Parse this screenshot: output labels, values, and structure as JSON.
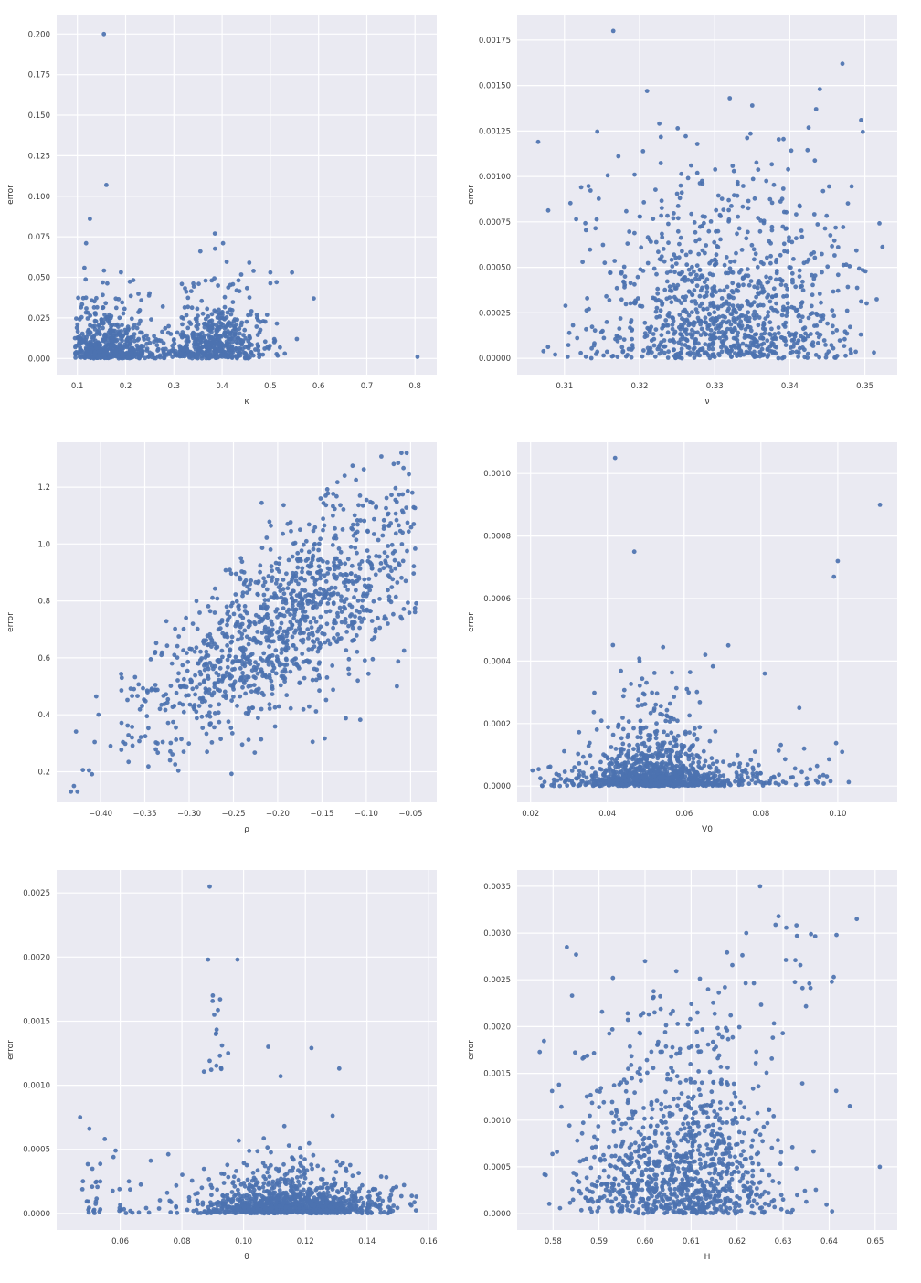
{
  "page": {
    "background": "#ffffff"
  },
  "style": {
    "plot_bg": "#eaeaf2",
    "grid_color": "#ffffff",
    "point_color": "#4c72b0",
    "tick_color": "#3d3d3d",
    "label_color": "#333333"
  },
  "chart_data": [
    {
      "type": "scatter",
      "title": "",
      "xlabel": "κ",
      "ylabel": "error",
      "grid": true,
      "legend": null,
      "xlim": [
        0.057,
        0.845
      ],
      "ylim": [
        -0.01,
        0.212
      ],
      "xtick_values": [
        0.1,
        0.2,
        0.3,
        0.4,
        0.5,
        0.6,
        0.7,
        0.8
      ],
      "xtick_labels": [
        "0.1",
        "0.2",
        "0.3",
        "0.4",
        "0.5",
        "0.6",
        "0.7",
        "0.8"
      ],
      "ytick_values": [
        0.0,
        0.025,
        0.05,
        0.075,
        0.1,
        0.125,
        0.15,
        0.175,
        0.2
      ],
      "ytick_labels": [
        "0.000",
        "0.025",
        "0.050",
        "0.075",
        "0.100",
        "0.125",
        "0.150",
        "0.175",
        "0.200"
      ],
      "n_points_approx": 1060,
      "seed": 101,
      "outlier_points": [
        [
          0.155,
          0.2
        ],
        [
          0.16,
          0.107
        ],
        [
          0.126,
          0.086
        ],
        [
          0.118,
          0.071
        ],
        [
          0.385,
          0.077
        ],
        [
          0.402,
          0.071
        ],
        [
          0.355,
          0.066
        ],
        [
          0.5,
          0.053
        ],
        [
          0.513,
          0.047
        ],
        [
          0.545,
          0.053
        ],
        [
          0.59,
          0.037
        ],
        [
          0.555,
          0.012
        ],
        [
          0.53,
          0.003
        ],
        [
          0.805,
          0.001
        ]
      ],
      "point_clusters": [
        {
          "n": 510,
          "x": {
            "dist": "gauss",
            "mean": 0.165,
            "sd": 0.05,
            "clip": [
              0.095,
              0.31
            ]
          },
          "y": {
            "dist": "exp",
            "scale": 0.011,
            "max": 0.062
          }
        },
        {
          "n": 510,
          "x": {
            "dist": "gauss",
            "mean": 0.385,
            "sd": 0.052,
            "clip": [
              0.27,
              0.52
            ]
          },
          "y": {
            "dist": "exp",
            "scale": 0.013,
            "max": 0.072
          }
        },
        {
          "n": 25,
          "x": {
            "dist": "uniform",
            "min": 0.25,
            "max": 0.33
          },
          "y": {
            "dist": "exp",
            "scale": 0.008,
            "max": 0.03
          }
        }
      ]
    },
    {
      "type": "scatter",
      "title": "",
      "xlabel": "ν",
      "ylabel": "error",
      "grid": true,
      "legend": null,
      "xlim": [
        0.3037,
        0.3543
      ],
      "ylim": [
        -9e-05,
        0.00189
      ],
      "xtick_values": [
        0.31,
        0.32,
        0.33,
        0.34,
        0.35
      ],
      "xtick_labels": [
        "0.31",
        "0.32",
        "0.33",
        "0.34",
        "0.35"
      ],
      "ytick_values": [
        0.0,
        0.00025,
        0.0005,
        0.00075,
        0.001,
        0.00125,
        0.0015,
        0.00175
      ],
      "ytick_labels": [
        "0.00000",
        "0.00025",
        "0.00050",
        "0.00075",
        "0.00100",
        "0.00125",
        "0.00150",
        "0.00175"
      ],
      "n_points_approx": 1060,
      "seed": 102,
      "outlier_points": [
        [
          0.3165,
          0.0018
        ],
        [
          0.347,
          0.00162
        ],
        [
          0.3065,
          0.00119
        ],
        [
          0.321,
          0.00147
        ],
        [
          0.332,
          0.00143
        ],
        [
          0.344,
          0.00148
        ],
        [
          0.3435,
          0.00137
        ],
        [
          0.335,
          0.00139
        ],
        [
          0.3495,
          0.00131
        ]
      ],
      "point_clusters": [
        {
          "n": 930,
          "x": {
            "dist": "gauss",
            "mean": 0.331,
            "sd": 0.0088,
            "clip": [
              0.3045,
              0.3525
            ]
          },
          "y": {
            "dist": "exp",
            "scale": 0.0003,
            "max": 0.00132
          }
        },
        {
          "n": 120,
          "x": {
            "dist": "gauss",
            "mean": 0.3315,
            "sd": 0.01,
            "clip": [
              0.306,
              0.352
            ]
          },
          "y": {
            "dist": "uniform",
            "min": 0.00015,
            "max": 0.00105
          }
        }
      ]
    },
    {
      "type": "scatter",
      "title": "",
      "xlabel": "ρ",
      "ylabel": "error",
      "grid": true,
      "legend": null,
      "xlim": [
        -0.4495,
        -0.0205
      ],
      "ylim": [
        0.0925,
        1.3575
      ],
      "xtick_values": [
        -0.4,
        -0.35,
        -0.3,
        -0.25,
        -0.2,
        -0.15,
        -0.1,
        -0.05
      ],
      "xtick_labels": [
        "−0.40",
        "−0.35",
        "−0.30",
        "−0.25",
        "−0.20",
        "−0.15",
        "−0.10",
        "−0.05"
      ],
      "ytick_values": [
        0.2,
        0.4,
        0.6,
        0.8,
        1.0,
        1.2
      ],
      "ytick_labels": [
        "0.2",
        "0.4",
        "0.6",
        "0.8",
        "1.0",
        "1.2"
      ],
      "n_points_approx": 1160,
      "seed": 103,
      "outlier_points": [
        [
          -0.43,
          0.15
        ],
        [
          -0.413,
          0.205
        ],
        [
          -0.045,
          0.775
        ],
        [
          -0.052,
          1.245
        ],
        [
          -0.064,
          1.285
        ]
      ],
      "point_clusters": [
        {
          "n": 1150,
          "x": {
            "dist": "gauss",
            "mean": -0.185,
            "sd": 0.085,
            "clip": [
              -0.435,
              -0.042
            ]
          },
          "y": {
            "dist": "linear",
            "a": 1.108,
            "b": 1.97,
            "sd0": 0.1,
            "sd1": 0.22,
            "xref": -0.435,
            "clip": [
              0.13,
              1.32
            ]
          }
        }
      ]
    },
    {
      "type": "scatter",
      "title": "",
      "xlabel": "V0",
      "ylabel": "error",
      "grid": true,
      "legend": null,
      "xlim": [
        0.0165,
        0.1155
      ],
      "ylim": [
        -5.2e-05,
        0.0011
      ],
      "xtick_values": [
        0.02,
        0.04,
        0.06,
        0.08,
        0.1
      ],
      "xtick_labels": [
        "0.02",
        "0.04",
        "0.06",
        "0.08",
        "0.10"
      ],
      "ytick_values": [
        0.0,
        0.0002,
        0.0004,
        0.0006,
        0.0008,
        0.001
      ],
      "ytick_labels": [
        "0.0000",
        "0.0002",
        "0.0004",
        "0.0006",
        "0.0008",
        "0.0010"
      ],
      "n_points_approx": 1110,
      "seed": 104,
      "outlier_points": [
        [
          0.042,
          0.00105
        ],
        [
          0.111,
          0.0009
        ],
        [
          0.047,
          0.00075
        ],
        [
          0.1,
          0.00072
        ],
        [
          0.099,
          0.00067
        ],
        [
          0.0715,
          0.00045
        ],
        [
          0.081,
          0.00036
        ],
        [
          0.0655,
          0.00042
        ],
        [
          0.09,
          0.00025
        ],
        [
          0.0205,
          5e-05
        ]
      ],
      "point_clusters": [
        {
          "n": 640,
          "x": {
            "dist": "gauss",
            "mean": 0.053,
            "sd": 0.013,
            "clip": [
              0.021,
              0.108
            ]
          },
          "y": {
            "dist": "exp",
            "scale": 3e-05,
            "max": 0.00018
          }
        },
        {
          "n": 430,
          "x": {
            "dist": "gauss",
            "mean": 0.052,
            "sd": 0.0075,
            "clip": [
              0.03,
              0.08
            ]
          },
          "y": {
            "dist": "exp",
            "scale": 0.0001,
            "max": 0.00048
          }
        },
        {
          "n": 30,
          "x": {
            "dist": "uniform",
            "min": 0.078,
            "max": 0.104
          },
          "y": {
            "dist": "exp",
            "scale": 6e-05,
            "max": 0.0002
          }
        }
      ]
    },
    {
      "type": "scatter",
      "title": "",
      "xlabel": "θ",
      "ylabel": "error",
      "grid": true,
      "legend": null,
      "xlim": [
        0.0394,
        0.1626
      ],
      "ylim": [
        -0.00013,
        0.00268
      ],
      "xtick_values": [
        0.06,
        0.08,
        0.1,
        0.12,
        0.14,
        0.16
      ],
      "xtick_labels": [
        "0.06",
        "0.08",
        "0.10",
        "0.12",
        "0.14",
        "0.16"
      ],
      "ytick_values": [
        0.0,
        0.0005,
        0.001,
        0.0015,
        0.002,
        0.0025
      ],
      "ytick_labels": [
        "0.0000",
        "0.0005",
        "0.0010",
        "0.0015",
        "0.0020",
        "0.0025"
      ],
      "n_points_approx": 1135,
      "seed": 105,
      "outlier_points": [
        [
          0.089,
          0.00255
        ],
        [
          0.0885,
          0.00198
        ],
        [
          0.098,
          0.00198
        ],
        [
          0.09,
          0.0017
        ],
        [
          0.0905,
          0.00155
        ],
        [
          0.091,
          0.0014
        ],
        [
          0.093,
          0.00131
        ],
        [
          0.095,
          0.00125
        ],
        [
          0.089,
          0.00119
        ],
        [
          0.0895,
          0.00112
        ],
        [
          0.108,
          0.0013
        ],
        [
          0.112,
          0.00107
        ],
        [
          0.122,
          0.00129
        ],
        [
          0.131,
          0.00113
        ],
        [
          0.047,
          0.00075
        ],
        [
          0.05,
          0.00066
        ],
        [
          0.055,
          0.00058
        ],
        [
          0.0585,
          0.00049
        ],
        [
          0.156,
          0.00013
        ],
        [
          0.152,
          0.00022
        ]
      ],
      "point_clusters": [
        {
          "n": 800,
          "x": {
            "dist": "gauss",
            "mean": 0.116,
            "sd": 0.016,
            "clip": [
              0.062,
              0.157
            ]
          },
          "y": {
            "dist": "exp",
            "scale": 8e-05,
            "max": 0.0005
          }
        },
        {
          "n": 260,
          "x": {
            "dist": "gauss",
            "mean": 0.113,
            "sd": 0.012,
            "clip": [
              0.08,
              0.148
            ]
          },
          "y": {
            "dist": "exp",
            "scale": 0.00018,
            "max": 0.00095
          }
        },
        {
          "n": 45,
          "x": {
            "dist": "gauss",
            "mean": 0.058,
            "sd": 0.009,
            "clip": [
              0.044,
              0.082
            ]
          },
          "y": {
            "dist": "exp",
            "scale": 0.00015,
            "max": 0.0006
          }
        },
        {
          "n": 10,
          "x": {
            "dist": "gauss",
            "mean": 0.0905,
            "sd": 0.0015,
            "clip": [
              0.087,
              0.094
            ]
          },
          "y": {
            "dist": "uniform",
            "min": 0.00105,
            "max": 0.00172
          }
        }
      ]
    },
    {
      "type": "scatter",
      "title": "",
      "xlabel": "H",
      "ylabel": "error",
      "grid": true,
      "legend": null,
      "xlim": [
        0.5722,
        0.6548
      ],
      "ylim": [
        -0.000175,
        0.003675
      ],
      "xtick_values": [
        0.58,
        0.59,
        0.6,
        0.61,
        0.62,
        0.63,
        0.64,
        0.65
      ],
      "xtick_labels": [
        "0.58",
        "0.59",
        "0.60",
        "0.61",
        "0.62",
        "0.63",
        "0.64",
        "0.65"
      ],
      "ytick_values": [
        0.0,
        0.0005,
        0.001,
        0.0015,
        0.002,
        0.0025,
        0.003,
        0.0035
      ],
      "ytick_labels": [
        "0.0000",
        "0.0005",
        "0.0010",
        "0.0015",
        "0.0020",
        "0.0025",
        "0.0030",
        "0.0035"
      ],
      "n_points_approx": 1110,
      "seed": 106,
      "outlier_points": [
        [
          0.625,
          0.0035
        ],
        [
          0.646,
          0.00315
        ],
        [
          0.629,
          0.00318
        ],
        [
          0.622,
          0.003
        ],
        [
          0.633,
          0.00297
        ],
        [
          0.583,
          0.00285
        ],
        [
          0.585,
          0.00277
        ],
        [
          0.6,
          0.0027
        ],
        [
          0.593,
          0.00252
        ],
        [
          0.641,
          0.00253
        ],
        [
          0.651,
          0.0005
        ],
        [
          0.6445,
          0.00115
        ]
      ],
      "point_clusters": [
        {
          "n": 770,
          "x": {
            "dist": "gauss",
            "mean": 0.606,
            "sd": 0.011,
            "clip": [
              0.576,
              0.648
            ]
          },
          "y": {
            "dist": "exp",
            "scale": 0.0006,
            "max": 0.0024
          }
        },
        {
          "n": 310,
          "x": {
            "dist": "gauss",
            "mean": 0.61,
            "sd": 0.0095,
            "clip": [
              0.582,
              0.642
            ]
          },
          "y": {
            "dist": "exp",
            "scale": 0.0009,
            "max": 0.0026
          }
        },
        {
          "n": 18,
          "x": {
            "dist": "gauss",
            "mean": 0.627,
            "sd": 0.009,
            "clip": [
              0.607,
              0.65
            ]
          },
          "y": {
            "dist": "uniform",
            "min": 0.0024,
            "max": 0.0032
          }
        }
      ]
    }
  ]
}
